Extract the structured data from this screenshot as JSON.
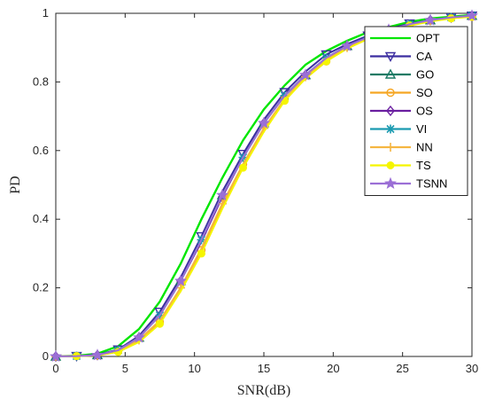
{
  "chart_data": {
    "type": "line",
    "title": "",
    "xlabel": "SNR(dB)",
    "ylabel": "PD",
    "xlim": [
      0,
      30
    ],
    "ylim": [
      0,
      1
    ],
    "xticks": [
      0,
      5,
      10,
      15,
      20,
      25,
      30
    ],
    "yticks": [
      0,
      0.2,
      0.4,
      0.6,
      0.8,
      1
    ],
    "xtick_labels": [
      "0",
      "5",
      "10",
      "15",
      "20",
      "25",
      "30"
    ],
    "ytick_labels": [
      "0",
      "0.2",
      "0.4",
      "0.6",
      "0.8",
      "1"
    ],
    "grid": false,
    "legend_position": "top-right",
    "x": [
      0,
      1.5,
      3,
      4.5,
      6,
      7.5,
      9,
      10.5,
      12,
      13.5,
      15,
      16.5,
      18,
      19.5,
      21,
      22.5,
      24,
      25.5,
      27,
      28.5,
      30
    ],
    "series": [
      {
        "name": "OPT",
        "color": "#00e600",
        "marker": "none",
        "values": [
          0.0,
          0.002,
          0.008,
          0.03,
          0.08,
          0.16,
          0.27,
          0.4,
          0.52,
          0.63,
          0.72,
          0.79,
          0.85,
          0.89,
          0.92,
          0.945,
          0.96,
          0.975,
          0.985,
          0.99,
          0.995
        ]
      },
      {
        "name": "CA",
        "color": "#3c2ea0",
        "marker": "triangle-down",
        "values": [
          0.0,
          0.001,
          0.005,
          0.02,
          0.06,
          0.13,
          0.23,
          0.35,
          0.48,
          0.59,
          0.69,
          0.77,
          0.83,
          0.88,
          0.91,
          0.935,
          0.955,
          0.97,
          0.98,
          0.988,
          0.993
        ]
      },
      {
        "name": "GO",
        "color": "#1a7a64",
        "marker": "triangle-up",
        "values": [
          0.0,
          0.001,
          0.004,
          0.018,
          0.055,
          0.12,
          0.22,
          0.34,
          0.47,
          0.58,
          0.68,
          0.76,
          0.82,
          0.87,
          0.905,
          0.93,
          0.952,
          0.968,
          0.98,
          0.988,
          0.993
        ]
      },
      {
        "name": "SO",
        "color": "#f5a623",
        "marker": "circle",
        "values": [
          0.0,
          0.001,
          0.003,
          0.015,
          0.045,
          0.1,
          0.2,
          0.31,
          0.44,
          0.56,
          0.66,
          0.75,
          0.81,
          0.86,
          0.9,
          0.925,
          0.948,
          0.965,
          0.977,
          0.986,
          0.99
        ]
      },
      {
        "name": "OS",
        "color": "#6a1fa0",
        "marker": "diamond",
        "values": [
          0.0,
          0.001,
          0.004,
          0.018,
          0.055,
          0.12,
          0.22,
          0.335,
          0.465,
          0.58,
          0.68,
          0.76,
          0.82,
          0.87,
          0.905,
          0.93,
          0.952,
          0.968,
          0.98,
          0.988,
          0.993
        ]
      },
      {
        "name": "VI",
        "color": "#1a9ab0",
        "marker": "asterisk",
        "values": [
          0.0,
          0.001,
          0.004,
          0.018,
          0.055,
          0.12,
          0.22,
          0.34,
          0.47,
          0.58,
          0.68,
          0.76,
          0.82,
          0.87,
          0.905,
          0.93,
          0.952,
          0.968,
          0.98,
          0.988,
          0.993
        ]
      },
      {
        "name": "NN",
        "color": "#f5b642",
        "marker": "plus",
        "values": [
          0.0,
          0.001,
          0.003,
          0.015,
          0.048,
          0.105,
          0.2,
          0.315,
          0.445,
          0.56,
          0.665,
          0.75,
          0.815,
          0.865,
          0.9,
          0.928,
          0.95,
          0.966,
          0.978,
          0.986,
          0.991
        ]
      },
      {
        "name": "TS",
        "color": "#f5f500",
        "marker": "filled-circle",
        "values": [
          0.0,
          0.001,
          0.003,
          0.013,
          0.042,
          0.095,
          0.19,
          0.3,
          0.43,
          0.55,
          0.655,
          0.745,
          0.81,
          0.86,
          0.897,
          0.925,
          0.947,
          0.964,
          0.976,
          0.985,
          0.99
        ]
      },
      {
        "name": "TSNN",
        "color": "#9b6fd6",
        "marker": "star",
        "values": [
          0.0,
          0.001,
          0.004,
          0.018,
          0.055,
          0.12,
          0.22,
          0.34,
          0.47,
          0.58,
          0.68,
          0.76,
          0.82,
          0.87,
          0.905,
          0.93,
          0.952,
          0.968,
          0.98,
          0.988,
          0.993
        ]
      }
    ]
  }
}
